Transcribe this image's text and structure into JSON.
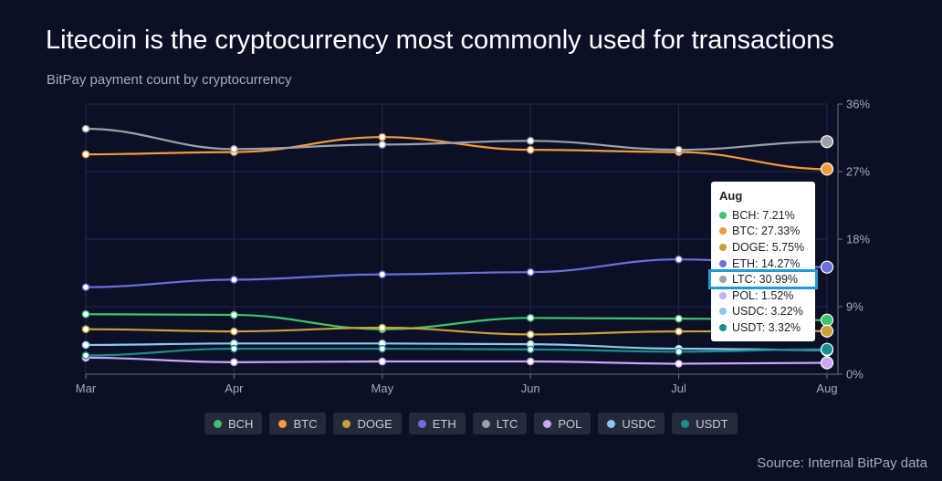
{
  "title": "Litecoin is the cryptocurrency most commonly used for transactions",
  "subtitle": "BitPay payment count by cryptocurrency",
  "source": "Source: Internal BitPay data",
  "chart_data": {
    "type": "line",
    "x": [
      "Mar",
      "Apr",
      "May",
      "Jun",
      "Jul",
      "Aug"
    ],
    "y_ticks": [
      "0%",
      "9%",
      "18%",
      "27%",
      "36%"
    ],
    "ylim": [
      0,
      36
    ],
    "y_axis_side": "right",
    "grid": true,
    "legend_position": "bottom",
    "series": [
      {
        "name": "BCH",
        "color": "#3ec46d",
        "values": [
          8.0,
          7.9,
          6.0,
          7.5,
          7.4,
          7.21
        ]
      },
      {
        "name": "BTC",
        "color": "#f29b38",
        "values": [
          29.3,
          29.6,
          31.6,
          29.9,
          29.6,
          27.33
        ]
      },
      {
        "name": "DOGE",
        "color": "#c9a236",
        "values": [
          6.0,
          5.7,
          6.2,
          5.3,
          5.7,
          5.75
        ]
      },
      {
        "name": "ETH",
        "color": "#6b6fd8",
        "values": [
          11.6,
          12.6,
          13.3,
          13.6,
          15.3,
          14.27
        ]
      },
      {
        "name": "LTC",
        "color": "#9ea0a8",
        "values": [
          32.7,
          30.0,
          30.6,
          31.1,
          29.9,
          30.99
        ]
      },
      {
        "name": "POL",
        "color": "#c7a8f4",
        "values": [
          2.2,
          1.6,
          1.7,
          1.7,
          1.4,
          1.52
        ]
      },
      {
        "name": "USDC",
        "color": "#8cc9f2",
        "values": [
          3.9,
          4.1,
          4.1,
          4.0,
          3.4,
          3.22
        ]
      },
      {
        "name": "USDT",
        "color": "#1a8e8e",
        "values": [
          2.5,
          3.4,
          3.4,
          3.3,
          3.0,
          3.32
        ]
      }
    ],
    "tooltip": {
      "title": "Aug",
      "highlighted": "LTC",
      "rows": [
        {
          "name": "BCH",
          "label": "BCH: 7.21%"
        },
        {
          "name": "BTC",
          "label": "BTC: 27.33%"
        },
        {
          "name": "DOGE",
          "label": "DOGE: 5.75%"
        },
        {
          "name": "ETH",
          "label": "ETH: 14.27%"
        },
        {
          "name": "LTC",
          "label": "LTC: 30.99%"
        },
        {
          "name": "POL",
          "label": "POL: 1.52%"
        },
        {
          "name": "USDC",
          "label": "USDC: 3.22%"
        },
        {
          "name": "USDT",
          "label": "USDT: 3.32%"
        }
      ]
    }
  }
}
